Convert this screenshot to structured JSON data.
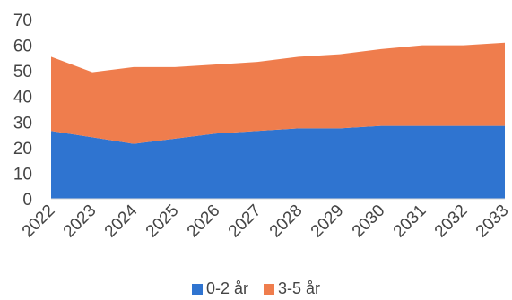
{
  "chart_data": {
    "type": "area",
    "stacked": true,
    "x": [
      "2022",
      "2023",
      "2024",
      "2025",
      "2026",
      "2027",
      "2028",
      "2029",
      "2030",
      "2031",
      "2032",
      "2033"
    ],
    "series": [
      {
        "name": "0-2 år",
        "color": "#2f74d0",
        "values": [
          26.5,
          24,
          21.5,
          23.5,
          25.5,
          26.5,
          27.5,
          27.5,
          28.5,
          28.5,
          28.5,
          28.5
        ]
      },
      {
        "name": "3-5 år",
        "color": "#ef7d4d",
        "values": [
          29,
          25.5,
          30,
          28,
          27,
          27,
          28,
          29,
          30,
          31.5,
          31.5,
          32.5
        ]
      }
    ],
    "ylim": [
      0,
      70
    ],
    "yticks": [
      "0",
      "10",
      "20",
      "30",
      "40",
      "50",
      "60",
      "70"
    ],
    "grid": false,
    "legend_position": "bottom"
  }
}
